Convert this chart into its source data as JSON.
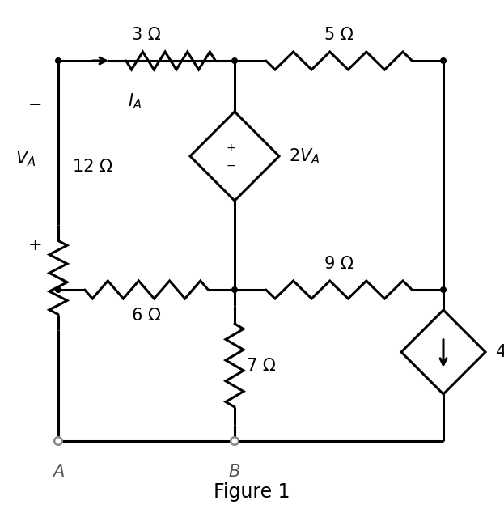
{
  "title": "Figure 1",
  "background_color": "#ffffff",
  "line_color": "#000000",
  "line_width": 2.2,
  "resistor_3": "3 Ω",
  "resistor_5": "5 Ω",
  "resistor_12": "12 Ω",
  "resistor_6": "6 Ω",
  "resistor_7": "7 Ω",
  "resistor_9": "9 Ω",
  "node_r": 0.055,
  "terminal_r": 0.08
}
